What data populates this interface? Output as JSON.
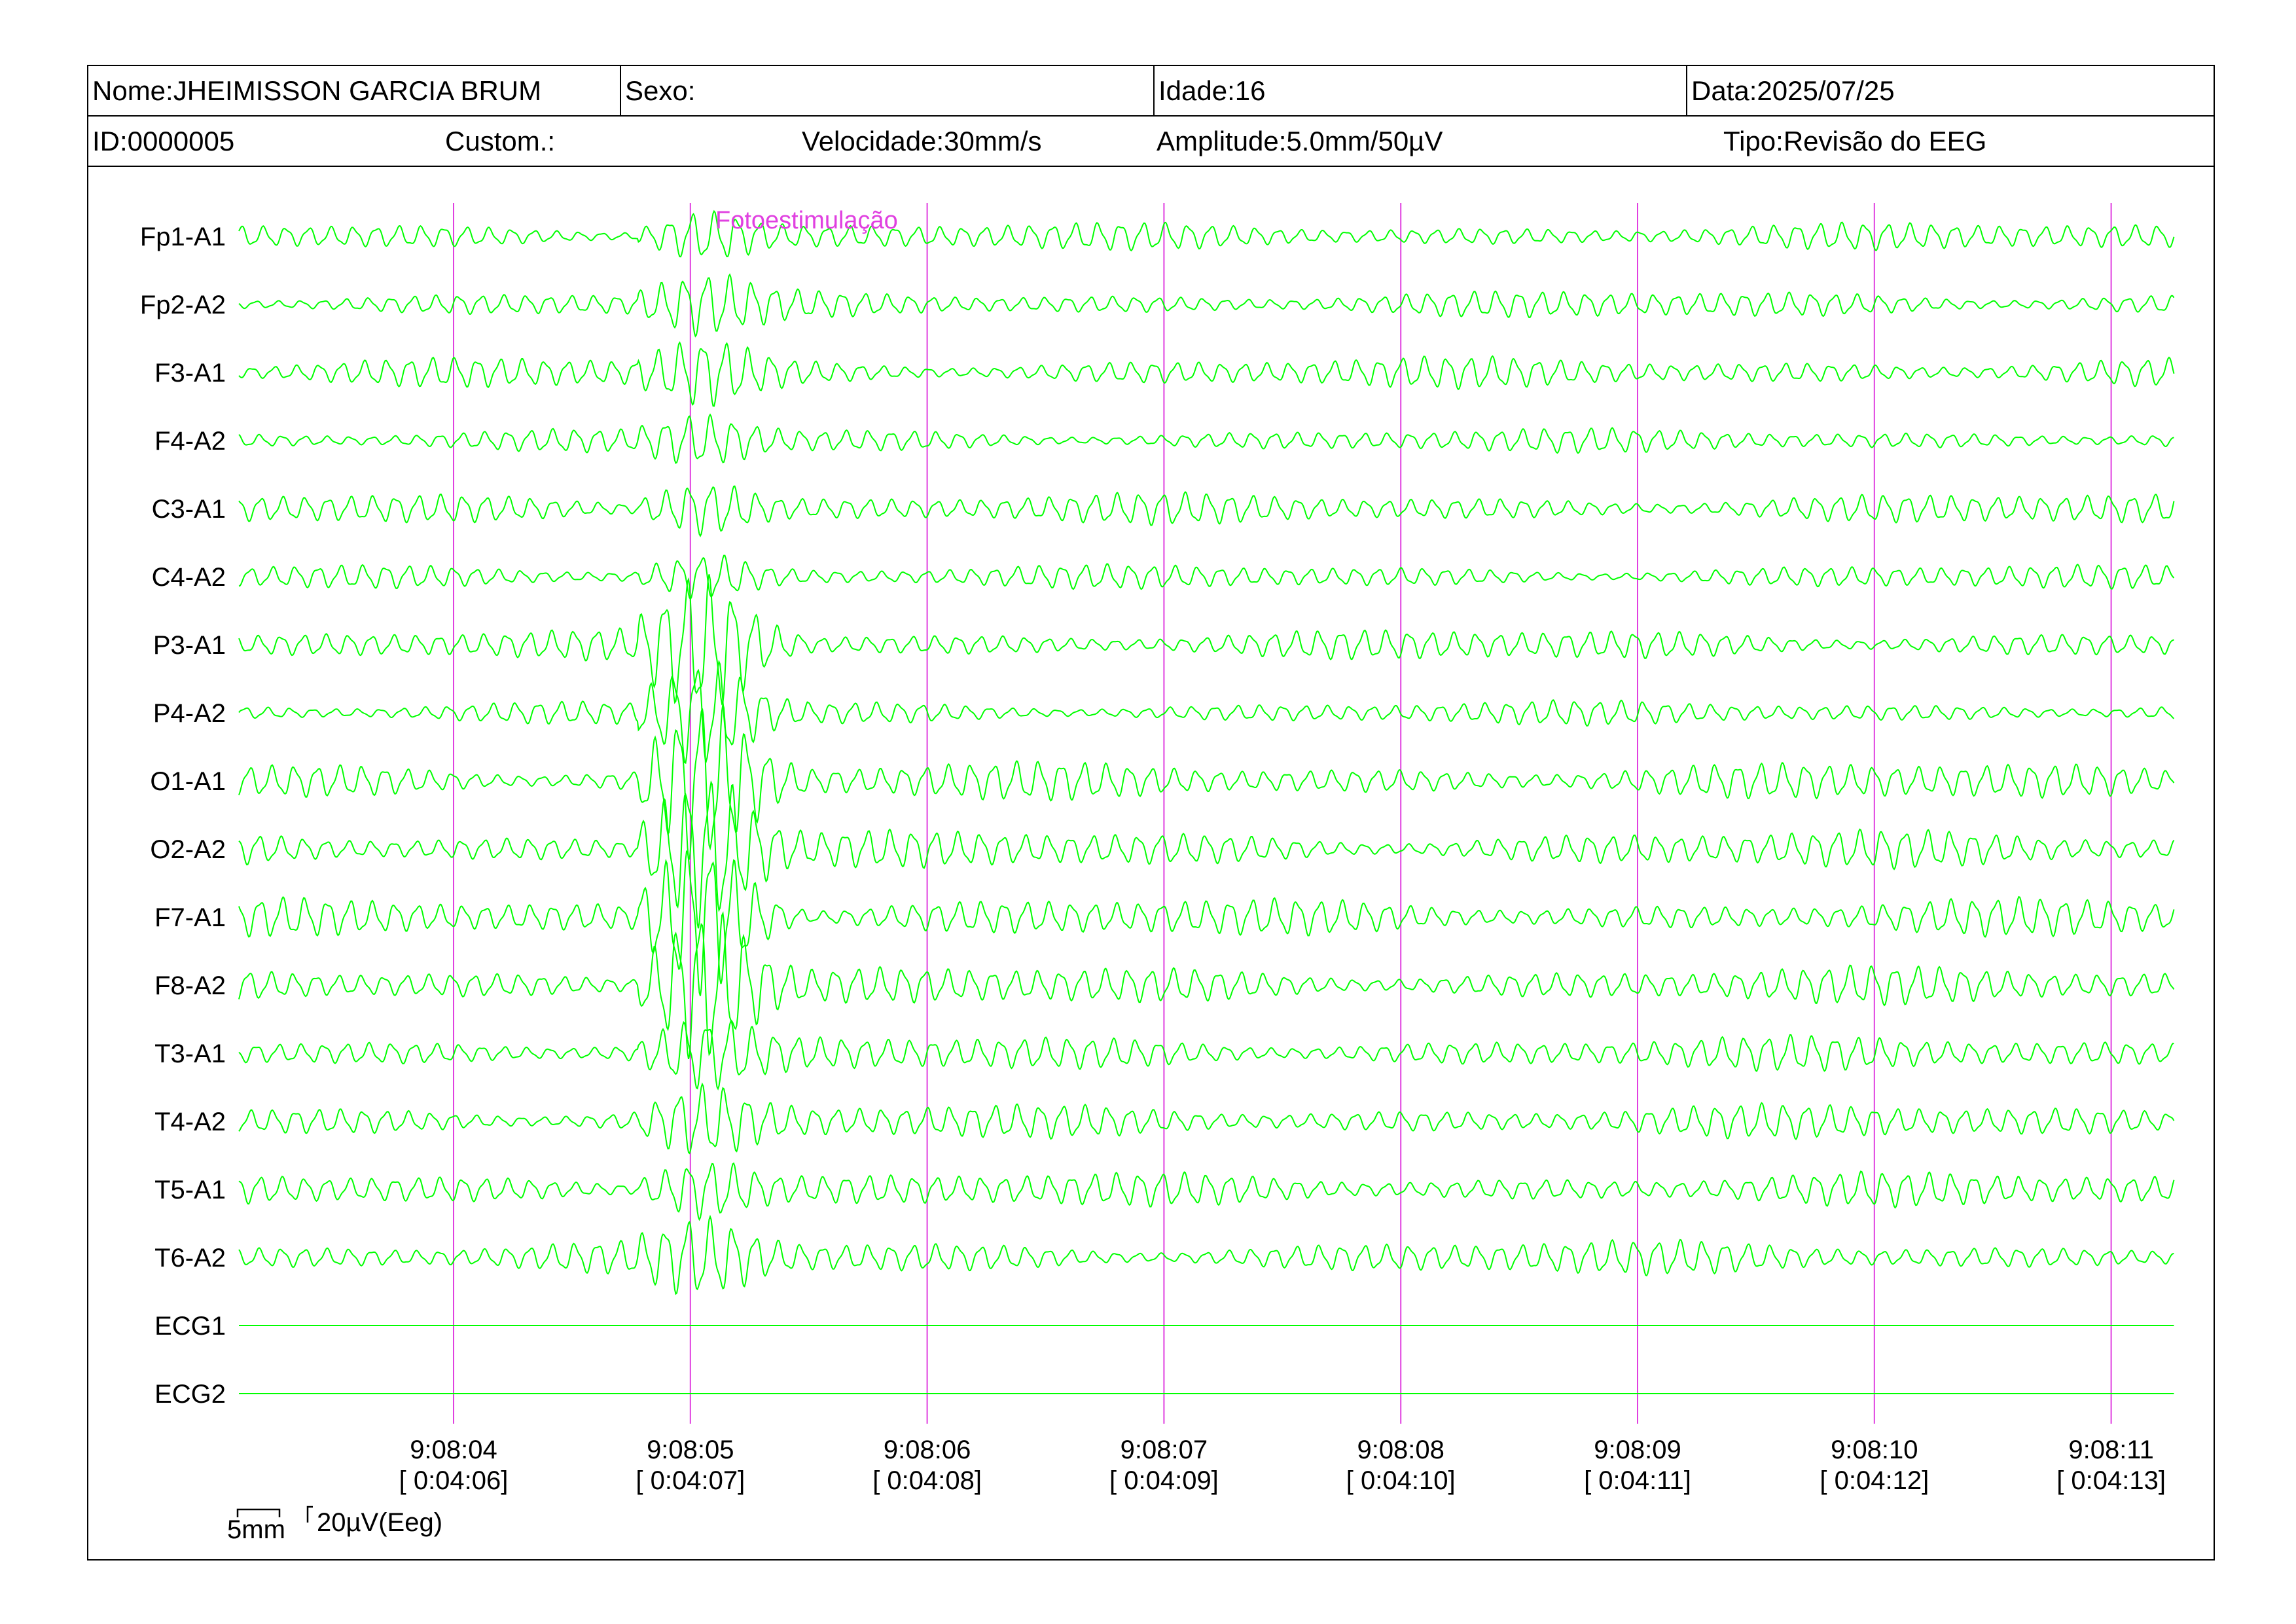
{
  "header": {
    "name": "Nome:JHEIMISSON GARCIA BRUM",
    "sex": "Sexo:",
    "age": "Idade:16",
    "date": "Data:2025/07/25",
    "id": "ID:0000005",
    "custom": "Custom.:",
    "speed": "Velocidade:30mm/s",
    "amplitude": "Amplitude:5.0mm/50µV",
    "type": "Tipo:Revisão do EEG"
  },
  "scale": {
    "time": "5mm",
    "voltage": "20µV(Eeg)"
  },
  "colors": {
    "trace": "#00ff00",
    "marker": "#e040e0",
    "annotation": "#e040e0",
    "text": "#000000",
    "border": "#000000"
  },
  "chart_data": {
    "type": "line",
    "annotation": "Fotoestimulação",
    "annotation_time": "9:08:05",
    "x_ticks": [
      {
        "clock": "9:08:04",
        "elapsed": "[ 0:04:06]"
      },
      {
        "clock": "9:08:05",
        "elapsed": "[ 0:04:07]"
      },
      {
        "clock": "9:08:06",
        "elapsed": "[ 0:04:08]"
      },
      {
        "clock": "9:08:07",
        "elapsed": "[ 0:04:09]"
      },
      {
        "clock": "9:08:08",
        "elapsed": "[ 0:04:10]"
      },
      {
        "clock": "9:08:09",
        "elapsed": "[ 0:04:11]"
      },
      {
        "clock": "9:08:10",
        "elapsed": "[ 0:04:12]"
      },
      {
        "clock": "9:08:11",
        "elapsed": "[ 0:04:13]"
      }
    ],
    "channels": [
      {
        "label": "Fp1-A1",
        "amp": 0.8,
        "freq": 10.5
      },
      {
        "label": "Fp2-A2",
        "amp": 0.8,
        "freq": 10.5
      },
      {
        "label": "F3-A1",
        "amp": 0.9,
        "freq": 10.5
      },
      {
        "label": "F4-A2",
        "amp": 0.7,
        "freq": 10.5
      },
      {
        "label": "C3-A1",
        "amp": 0.9,
        "freq": 10.5
      },
      {
        "label": "C4-A2",
        "amp": 0.7,
        "freq": 10.5
      },
      {
        "label": "P3-A1",
        "amp": 0.9,
        "freq": 10.5
      },
      {
        "label": "P4-A2",
        "amp": 0.7,
        "freq": 10.5
      },
      {
        "label": "O1-A1",
        "amp": 1.1,
        "freq": 10.5
      },
      {
        "label": "O2-A2",
        "amp": 1.1,
        "freq": 10.5
      },
      {
        "label": "F7-A1",
        "amp": 1.1,
        "freq": 10.5
      },
      {
        "label": "F8-A2",
        "amp": 1.1,
        "freq": 10.5
      },
      {
        "label": "T3-A1",
        "amp": 1.0,
        "freq": 10.5
      },
      {
        "label": "T4-A2",
        "amp": 1.0,
        "freq": 10.5
      },
      {
        "label": "T5-A1",
        "amp": 1.0,
        "freq": 10.5
      },
      {
        "label": "T6-A2",
        "amp": 1.0,
        "freq": 10.5
      },
      {
        "label": "ECG1",
        "amp": 0,
        "freq": 0
      },
      {
        "label": "ECG2",
        "amp": 0,
        "freq": 0
      }
    ]
  }
}
